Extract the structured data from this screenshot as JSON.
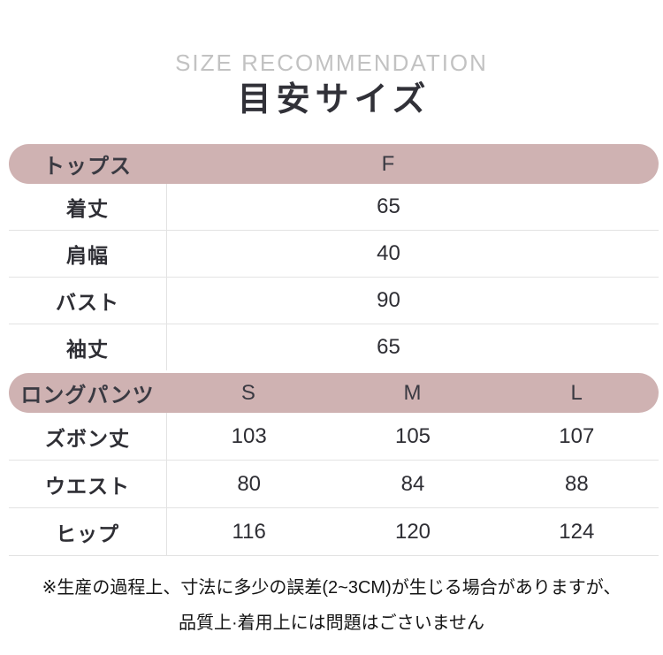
{
  "page": {
    "subtitle": "SIZE RECOMMENDATION",
    "title": "目安サイズ"
  },
  "tables": [
    {
      "name": "tops",
      "header": {
        "label": "トップス",
        "columns": [
          "F"
        ]
      },
      "rows": [
        {
          "label": "着丈",
          "values": [
            "65"
          ]
        },
        {
          "label": "肩幅",
          "values": [
            "40"
          ]
        },
        {
          "label": "バスト",
          "values": [
            "90"
          ]
        },
        {
          "label": "袖丈",
          "values": [
            "65"
          ]
        }
      ]
    },
    {
      "name": "long-pants",
      "header": {
        "label": "ロングパンツ",
        "columns": [
          "S",
          "M",
          "L"
        ]
      },
      "rows": [
        {
          "label": "ズボン丈",
          "values": [
            "103",
            "105",
            "107"
          ]
        },
        {
          "label": "ウエスト",
          "values": [
            "80",
            "84",
            "88"
          ]
        },
        {
          "label": "ヒップ",
          "values": [
            "116",
            "120",
            "124"
          ]
        }
      ]
    }
  ],
  "footnote": {
    "line1": "※生産の過程上、寸法に多少の誤差(2~3CM)が生じる場合がありますが、",
    "line2": "品質上·着用上には問題はごさいません"
  },
  "colors": {
    "header_pill": "#cfb2b2",
    "header_text": "#3a3a42",
    "title_text": "#313138",
    "subtitle_text": "#c2c2c2",
    "cell_text": "#2e2e34",
    "divider": "#e3e3e3",
    "note_text": "#141414"
  }
}
